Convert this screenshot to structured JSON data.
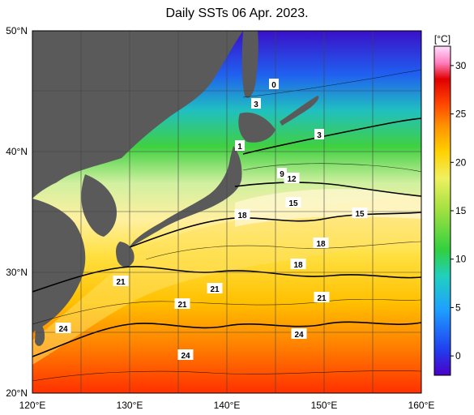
{
  "title": "Daily SSTs 06 Apr. 2023.",
  "map": {
    "lat_labels": [
      "50°N",
      "40°N",
      "30°N",
      "20°N"
    ],
    "lon_labels": [
      "120°E",
      "130°E",
      "140°E",
      "150°E",
      "160°E"
    ],
    "extent": {
      "lon_min": 120,
      "lon_max": 160,
      "lat_min": 20,
      "lat_max": 50
    },
    "contour_labels": [
      "0",
      "3",
      "3",
      "1",
      "9",
      "12",
      "15",
      "15",
      "18",
      "18",
      "18",
      "21",
      "21",
      "21",
      "21",
      "24",
      "24",
      "24"
    ]
  },
  "colorbar": {
    "unit": "[°C]",
    "ticks": [
      "30",
      "25",
      "20",
      "15",
      "10",
      "5",
      "0"
    ],
    "range": [
      -2,
      32
    ],
    "colors": [
      "#4b00c8",
      "#2040f0",
      "#1ea0ff",
      "#20d0c0",
      "#30d040",
      "#a0e040",
      "#f0f060",
      "#ffd000",
      "#ff9000",
      "#ff4000",
      "#e00000",
      "#ff80c0",
      "#ffe0ff"
    ]
  }
}
